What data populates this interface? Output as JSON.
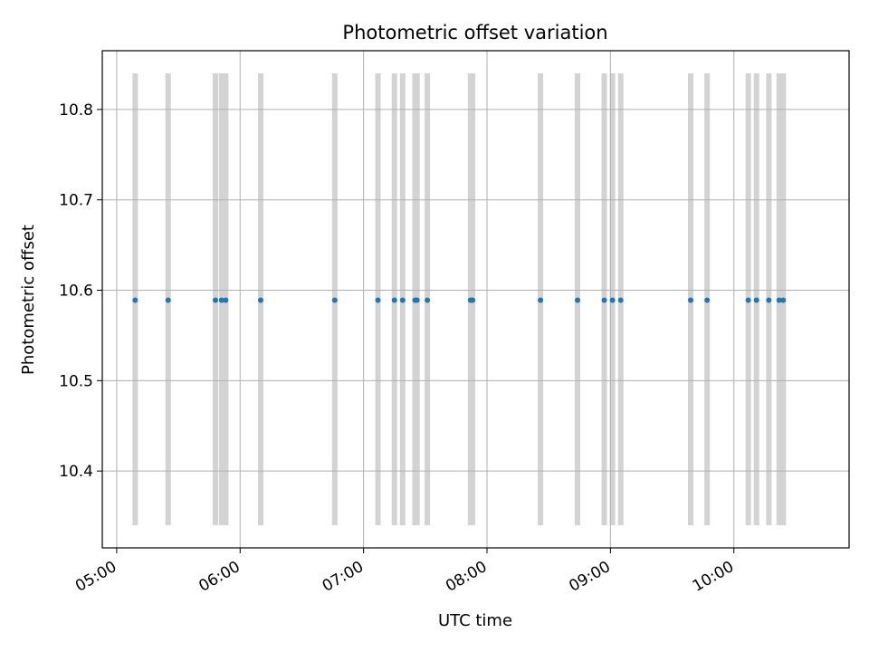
{
  "chart_data": {
    "type": "scatter",
    "title": "Photometric offset variation",
    "xlabel": "UTC time",
    "ylabel": "Photometric offset",
    "x_axis_type": "time",
    "xlim": [
      "04:53",
      "10:56"
    ],
    "ylim": [
      10.315,
      10.865
    ],
    "x_ticks": [
      "05:00",
      "06:00",
      "07:00",
      "08:00",
      "09:00",
      "10:00"
    ],
    "y_ticks": [
      10.4,
      10.5,
      10.6,
      10.7,
      10.8
    ],
    "y_tick_labels": [
      "10.4",
      "10.5",
      "10.6",
      "10.7",
      "10.8"
    ],
    "grid": true,
    "point_color": "#1f77b4",
    "band_color": "#d3d3d3",
    "band_y_range": [
      10.34,
      10.84
    ],
    "x": [
      "05:09",
      "05:25",
      "05:48",
      "05:51",
      "05:53",
      "06:10",
      "06:46",
      "07:07",
      "07:15",
      "07:19",
      "07:25",
      "07:26",
      "07:31",
      "07:52",
      "07:53",
      "08:26",
      "08:44",
      "08:57",
      "09:01",
      "09:05",
      "09:39",
      "09:47",
      "10:07",
      "10:11",
      "10:17",
      "10:22",
      "10:24"
    ],
    "y": [
      10.589,
      10.589,
      10.589,
      10.589,
      10.589,
      10.589,
      10.589,
      10.589,
      10.589,
      10.589,
      10.589,
      10.589,
      10.589,
      10.589,
      10.589,
      10.589,
      10.589,
      10.589,
      10.589,
      10.589,
      10.589,
      10.589,
      10.589,
      10.589,
      10.589,
      10.589,
      10.589
    ]
  }
}
